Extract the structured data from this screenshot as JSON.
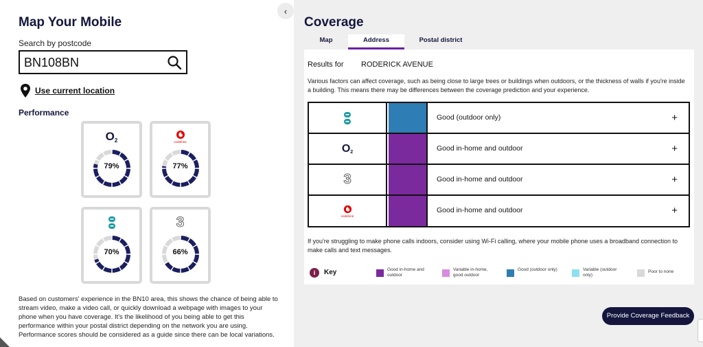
{
  "left": {
    "title": "Map Your Mobile",
    "search_label": "Search by postcode",
    "search_value": "BN108BN",
    "use_location": "Use current location",
    "performance_title": "Performance",
    "cards": [
      {
        "operator": "O2",
        "percent": 79,
        "label": "79%",
        "logo_text": "O",
        "logo_sub": "2"
      },
      {
        "operator": "Vodafone",
        "percent": 77,
        "label": "77%",
        "logo_text": "vodafone"
      },
      {
        "operator": "EE",
        "percent": 70,
        "label": "70%"
      },
      {
        "operator": "Three",
        "percent": 66,
        "label": "66%",
        "logo_text": "3"
      }
    ],
    "description": "Based on customers' experience in the BN10 area, this shows the chance of being able to stream video, make a video call, or quickly download a webpage with images to your phone when you have coverage. It's the likelihood of you being able to get this performance within your postal district depending on the network you are using. Performance scores should be considered as a guide since there can be local variations."
  },
  "collapse_glyph": "‹",
  "right": {
    "title": "Coverage",
    "tabs": [
      {
        "label": "Map",
        "active": false
      },
      {
        "label": "Address",
        "active": true
      },
      {
        "label": "Postal district",
        "active": false
      }
    ],
    "results_label": "Results for",
    "results_value": "RODERICK AVENUE",
    "factors_text": "Various factors can affect coverage, such as being close to large trees or buildings when outdoors, or the thickness of walls if you're inside a building. This means there may be differences between the coverage prediction and your experience.",
    "rows": [
      {
        "operator": "EE",
        "status": "Good (outdoor only)",
        "color": "#2e7db4",
        "expand": "+"
      },
      {
        "operator": "O2",
        "status": "Good in-home and outdoor",
        "color": "#7b2a9e",
        "expand": "+",
        "logo_text": "O",
        "logo_sub": "2"
      },
      {
        "operator": "Three",
        "status": "Good in-home and outdoor",
        "color": "#7b2a9e",
        "expand": "+",
        "logo_text": "3"
      },
      {
        "operator": "Vodafone",
        "status": "Good in-home and outdoor",
        "color": "#7b2a9e",
        "expand": "+",
        "logo_text": "vodafone"
      }
    ],
    "wifi_text": "If you're struggling to make phone calls indoors, consider using Wi-Fi calling, where your mobile phone uses a broadband connection to make calls and text messages.",
    "key_info": "i",
    "key_label": "Key",
    "key_items": [
      {
        "label": "Good in-home and outdoor",
        "color": "#7b2a9e"
      },
      {
        "label": "Variable in-home, good outdoor",
        "color": "#d98be0"
      },
      {
        "label": "Good (outdoor only)",
        "color": "#2e7db4"
      },
      {
        "label": "Variable (outdoor only)",
        "color": "#8ee0f0"
      },
      {
        "label": "Poor to none",
        "color": "#d9d9d9"
      }
    ],
    "feedback_button": "Provide Coverage Feedback"
  },
  "colors": {
    "navy": "#14163d",
    "ring": "#1b1f5e",
    "ring_bg": "#d9d9d9",
    "accent_purple": "#6a1fa4",
    "ee_teal": "#1d9ba3",
    "vodafone_red": "#e60000"
  }
}
